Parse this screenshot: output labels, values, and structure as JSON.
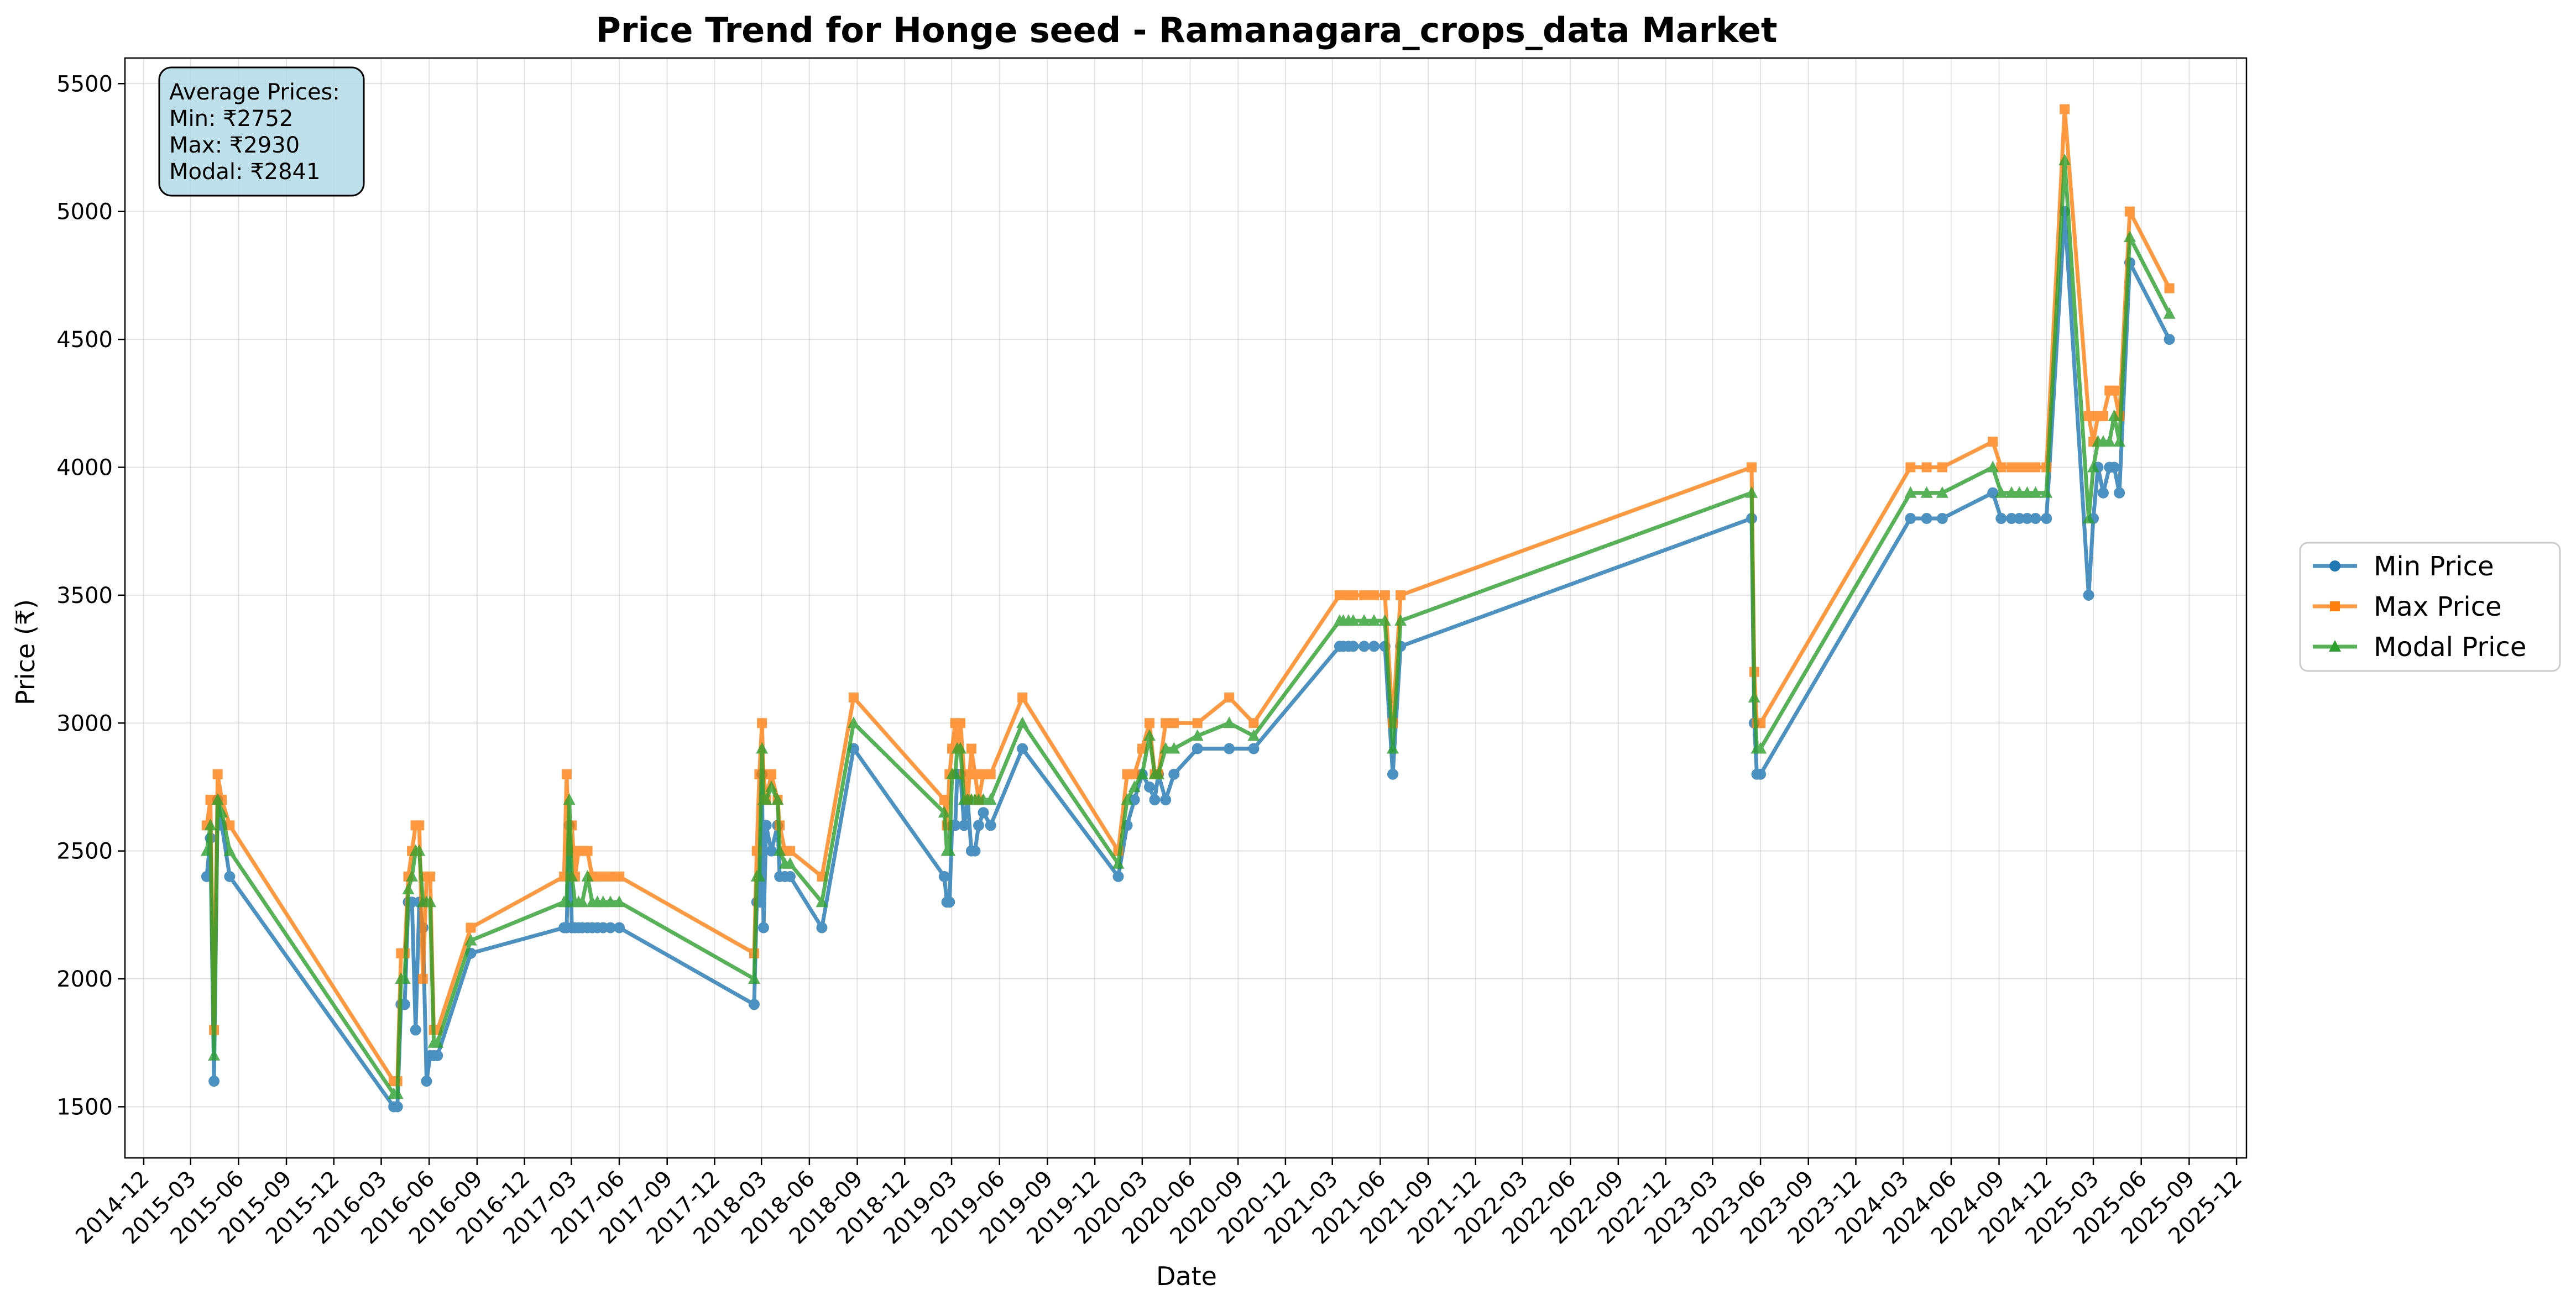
{
  "chart_data": {
    "type": "line",
    "title": "Price Trend for Honge seed - Ramanagara_crops_data Market",
    "xlabel": "Date",
    "ylabel": "Price (₹)",
    "ylim": [
      1300,
      5600
    ],
    "xlim": [
      "2014-10-26",
      "2025-12-20"
    ],
    "grid": true,
    "legend_position": "right, outside plot",
    "yticks": [
      1500,
      2000,
      2500,
      3000,
      3500,
      4000,
      4500,
      5000,
      5500
    ],
    "xticks": [
      "2014-12",
      "2015-03",
      "2015-06",
      "2015-09",
      "2015-12",
      "2016-03",
      "2016-06",
      "2016-09",
      "2016-12",
      "2017-03",
      "2017-06",
      "2017-09",
      "2017-12",
      "2018-03",
      "2018-06",
      "2018-09",
      "2018-12",
      "2019-03",
      "2019-06",
      "2019-09",
      "2019-12",
      "2020-03",
      "2020-06",
      "2020-09",
      "2020-12",
      "2021-03",
      "2021-06",
      "2021-09",
      "2021-12",
      "2022-03",
      "2022-06",
      "2022-09",
      "2022-12",
      "2023-03",
      "2023-06",
      "2023-09",
      "2023-12",
      "2024-03",
      "2024-06",
      "2024-09",
      "2024-12",
      "2025-03",
      "2025-06",
      "2025-09",
      "2025-12"
    ],
    "annotation": {
      "lines": [
        "Average Prices:",
        "Min: ₹2752",
        "Max: ₹2930",
        "Modal: ₹2841"
      ],
      "position": "top-left"
    },
    "x": [
      "2015-04-01",
      "2015-04-08",
      "2015-04-15",
      "2015-04-22",
      "2015-04-30",
      "2015-05-15",
      "2016-03-25",
      "2016-04-01",
      "2016-04-08",
      "2016-04-15",
      "2016-04-22",
      "2016-04-29",
      "2016-05-06",
      "2016-05-13",
      "2016-05-20",
      "2016-05-27",
      "2016-06-03",
      "2016-06-10",
      "2016-06-17",
      "2016-08-20",
      "2017-02-15",
      "2017-02-20",
      "2017-02-25",
      "2017-03-02",
      "2017-03-08",
      "2017-03-15",
      "2017-03-22",
      "2017-04-01",
      "2017-04-10",
      "2017-04-20",
      "2017-05-01",
      "2017-05-15",
      "2017-06-01",
      "2018-02-15",
      "2018-02-20",
      "2018-02-25",
      "2018-03-02",
      "2018-03-05",
      "2018-03-10",
      "2018-03-20",
      "2018-04-01",
      "2018-04-05",
      "2018-04-15",
      "2018-04-25",
      "2018-06-25",
      "2018-08-25",
      "2019-02-15",
      "2019-02-20",
      "2019-02-25",
      "2019-03-02",
      "2019-03-08",
      "2019-03-12",
      "2019-03-18",
      "2019-03-25",
      "2019-04-01",
      "2019-04-08",
      "2019-04-15",
      "2019-04-22",
      "2019-05-01",
      "2019-05-15",
      "2019-07-15",
      "2020-01-15",
      "2020-02-01",
      "2020-02-15",
      "2020-03-01",
      "2020-03-15",
      "2020-03-25",
      "2020-04-01",
      "2020-04-15",
      "2020-05-01",
      "2020-06-15",
      "2020-08-15",
      "2020-10-01",
      "2021-03-15",
      "2021-03-22",
      "2021-04-01",
      "2021-04-10",
      "2021-05-01",
      "2021-05-20",
      "2021-06-10",
      "2021-06-25",
      "2021-07-10",
      "2023-05-15",
      "2023-05-20",
      "2023-05-25",
      "2023-06-01",
      "2024-03-15",
      "2024-04-15",
      "2024-05-15",
      "2024-08-20",
      "2024-09-05",
      "2024-09-25",
      "2024-10-10",
      "2024-10-25",
      "2024-11-10",
      "2024-12-01",
      "2025-01-05",
      "2025-02-20",
      "2025-03-01",
      "2025-03-10",
      "2025-03-20",
      "2025-04-01",
      "2025-04-10",
      "2025-04-20",
      "2025-05-10",
      "2025-07-25"
    ],
    "series": [
      {
        "name": "Min Price",
        "color": "#1f77b4",
        "marker": "circle",
        "values": [
          2400,
          2550,
          1600,
          2700,
          2600,
          2400,
          1500,
          1500,
          1900,
          1900,
          2300,
          2300,
          1800,
          2300,
          2200,
          1600,
          1700,
          1700,
          1700,
          2100,
          2200,
          2200,
          2600,
          2200,
          2200,
          2200,
          2200,
          2200,
          2200,
          2200,
          2200,
          2200,
          2200,
          1900,
          2300,
          2300,
          2800,
          2200,
          2600,
          2500,
          2600,
          2400,
          2400,
          2400,
          2200,
          2900,
          2400,
          2300,
          2300,
          2600,
          2600,
          2800,
          2800,
          2600,
          2700,
          2500,
          2500,
          2600,
          2650,
          2600,
          2900,
          2400,
          2600,
          2700,
          2800,
          2750,
          2700,
          2800,
          2700,
          2800,
          2900,
          2900,
          2900,
          3300,
          3300,
          3300,
          3300,
          3300,
          3300,
          3300,
          2800,
          3300,
          3800,
          3000,
          2800,
          2800,
          3800,
          3800,
          3800,
          3900,
          3800,
          3800,
          3800,
          3800,
          3800,
          3800,
          5000,
          3500,
          3800,
          4000,
          3900,
          4000,
          4000,
          3900,
          4800,
          4500
        ]
      },
      {
        "name": "Max Price",
        "color": "#ff7f0e",
        "marker": "square",
        "values": [
          2600,
          2700,
          1800,
          2800,
          2700,
          2600,
          1600,
          1600,
          2100,
          2100,
          2400,
          2500,
          2600,
          2600,
          2000,
          2400,
          2400,
          1800,
          1800,
          2200,
          2400,
          2800,
          2500,
          2600,
          2400,
          2500,
          2500,
          2500,
          2400,
          2400,
          2400,
          2400,
          2400,
          2100,
          2500,
          2800,
          3000,
          2800,
          2700,
          2800,
          2700,
          2600,
          2500,
          2500,
          2400,
          3100,
          2700,
          2600,
          2800,
          2900,
          3000,
          2900,
          3000,
          2800,
          2700,
          2900,
          2800,
          2700,
          2800,
          2800,
          3100,
          2500,
          2800,
          2800,
          2900,
          3000,
          2800,
          2800,
          3000,
          3000,
          3000,
          3100,
          3000,
          3500,
          3500,
          3500,
          3500,
          3500,
          3500,
          3500,
          3000,
          3500,
          4000,
          3200,
          3000,
          3000,
          4000,
          4000,
          4000,
          4100,
          4000,
          4000,
          4000,
          4000,
          4000,
          4000,
          5400,
          4200,
          4100,
          4200,
          4200,
          4300,
          4300,
          4200,
          5000,
          4700
        ]
      },
      {
        "name": "Modal Price",
        "color": "#2ca02c",
        "marker": "triangle",
        "values": [
          2500,
          2600,
          1700,
          2700,
          2650,
          2500,
          1550,
          1550,
          2000,
          2000,
          2350,
          2400,
          2500,
          2500,
          2300,
          2300,
          2300,
          1750,
          1750,
          2150,
          2300,
          2300,
          2700,
          2400,
          2300,
          2300,
          2300,
          2400,
          2300,
          2300,
          2300,
          2300,
          2300,
          2000,
          2400,
          2400,
          2900,
          2700,
          2700,
          2750,
          2700,
          2500,
          2450,
          2450,
          2300,
          3000,
          2650,
          2500,
          2500,
          2800,
          2800,
          2900,
          2900,
          2700,
          2700,
          2700,
          2700,
          2700,
          2700,
          2700,
          3000,
          2450,
          2700,
          2750,
          2800,
          2950,
          2800,
          2800,
          2900,
          2900,
          2950,
          3000,
          2950,
          3400,
          3400,
          3400,
          3400,
          3400,
          3400,
          3400,
          2900,
          3400,
          3900,
          3100,
          2900,
          2900,
          3900,
          3900,
          3900,
          4000,
          3900,
          3900,
          3900,
          3900,
          3900,
          3900,
          5200,
          3800,
          4000,
          4100,
          4100,
          4100,
          4200,
          4100,
          4900,
          4600
        ]
      }
    ]
  }
}
